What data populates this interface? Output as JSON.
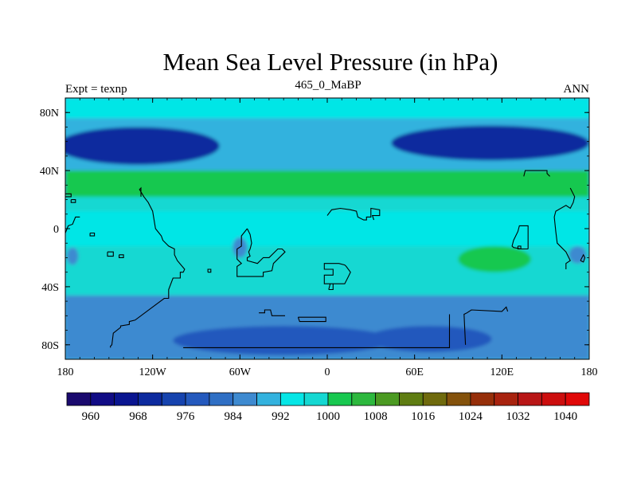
{
  "chart_data": {
    "type": "heatmap",
    "title": "Mean Sea Level Pressure (in hPa)",
    "subtitle_left": "Expt = texnp",
    "subtitle_center": "465_0_MaBP",
    "subtitle_right": "ANN",
    "x_range": [
      -180,
      180
    ],
    "y_range": [
      -90,
      90
    ],
    "x_ticks": [
      {
        "value": -180,
        "label": "180"
      },
      {
        "value": -120,
        "label": "120W"
      },
      {
        "value": -60,
        "label": "60W"
      },
      {
        "value": 0,
        "label": "0"
      },
      {
        "value": 60,
        "label": "60E"
      },
      {
        "value": 120,
        "label": "120E"
      },
      {
        "value": 180,
        "label": "180"
      }
    ],
    "y_ticks": [
      {
        "value": 80,
        "label": "80N"
      },
      {
        "value": 40,
        "label": "40N"
      },
      {
        "value": 0,
        "label": "0"
      },
      {
        "value": -40,
        "label": "40S"
      },
      {
        "value": -80,
        "label": "80S"
      }
    ],
    "colorbar": {
      "min": 956,
      "max": 1044,
      "step": 4,
      "colors": [
        "#1a0a6e",
        "#110c85",
        "#0a1590",
        "#0d2a9e",
        "#1643ae",
        "#2459bd",
        "#2f6fc4",
        "#3e8ad0",
        "#33b2de",
        "#06e6e6",
        "#15d8d2",
        "#18c850",
        "#2db83e",
        "#4b9a22",
        "#5f7d12",
        "#6f6a0d",
        "#84520c",
        "#962f0a",
        "#a8230f",
        "#b81616",
        "#cc0e0e",
        "#e00808"
      ],
      "labels": [
        "960",
        "968",
        "976",
        "984",
        "992",
        "1000",
        "1008",
        "1016",
        "1024",
        "1032",
        "1040"
      ],
      "label_values": [
        960,
        968,
        976,
        984,
        992,
        1000,
        1008,
        1016,
        1024,
        1032,
        1040
      ]
    },
    "base_level": 988,
    "pressure_regions": [
      {
        "value": 986,
        "lon": [
          -180,
          180
        ],
        "lat": [
          -90,
          -46
        ]
      },
      {
        "value": 998,
        "lon": [
          -180,
          180
        ],
        "lat": [
          -46,
          30
        ]
      },
      {
        "value": 1003,
        "lon": [
          -180,
          180
        ],
        "lat": [
          22,
          42
        ]
      },
      {
        "value": 990,
        "lon": [
          -180,
          180
        ],
        "lat": [
          40,
          74
        ]
      },
      {
        "value": 993,
        "lon": [
          -180,
          180
        ],
        "lat": [
          76,
          90
        ]
      },
      {
        "value": 993,
        "lon": [
          -180,
          180
        ],
        "lat": [
          -12,
          12
        ]
      },
      {
        "value": 968,
        "center": [
          -130,
          57
        ],
        "radius": [
          56,
          13
        ]
      },
      {
        "value": 968,
        "center": [
          112,
          59
        ],
        "radius": [
          68,
          12
        ]
      },
      {
        "value": 1003,
        "center": [
          115,
          -21
        ],
        "radius": [
          25,
          9
        ]
      },
      {
        "value": 976,
        "center": [
          -30,
          -77
        ],
        "radius": [
          76,
          10
        ]
      },
      {
        "value": 976,
        "center": [
          70,
          -76
        ],
        "radius": [
          43,
          9
        ]
      },
      {
        "value": 984,
        "center": [
          -60,
          -13
        ],
        "radius": [
          5,
          7
        ]
      },
      {
        "value": 984,
        "center": [
          -175,
          -19
        ],
        "radius": [
          4,
          6
        ]
      },
      {
        "value": 984,
        "center": [
          172,
          -18
        ],
        "radius": [
          6,
          6
        ]
      }
    ],
    "land_outlines": [
      [
        [
          -149,
          -82
        ],
        [
          -149,
          -81
        ],
        [
          -148,
          -80
        ],
        [
          -147,
          -72
        ],
        [
          -142,
          -68
        ],
        [
          -142,
          -67
        ],
        [
          -136,
          -66
        ],
        [
          -136,
          -64
        ],
        [
          -132,
          -63
        ],
        [
          -112,
          -48
        ],
        [
          -109,
          -48
        ],
        [
          -109,
          -42
        ],
        [
          -106,
          -34
        ],
        [
          -101,
          -34
        ],
        [
          -101,
          -30
        ],
        [
          -99,
          -30
        ],
        [
          -98,
          -28
        ],
        [
          -103,
          -22
        ],
        [
          -105,
          -18
        ],
        [
          -105,
          -14
        ],
        [
          -109,
          -12
        ],
        [
          -113,
          -8
        ],
        [
          -114,
          -5
        ],
        [
          -118,
          0
        ],
        [
          -120,
          12
        ],
        [
          -123,
          18
        ],
        [
          -126,
          22
        ],
        [
          -129,
          27
        ],
        [
          -128,
          28
        ],
        [
          -128,
          22
        ]
      ],
      [
        [
          -55,
          0
        ],
        [
          -53,
          -4
        ],
        [
          -52,
          -10
        ],
        [
          -53,
          -14
        ],
        [
          -54,
          -16
        ],
        [
          -53,
          -19
        ],
        [
          -55,
          -20
        ],
        [
          -55,
          -22
        ],
        [
          -48,
          -24
        ],
        [
          -44,
          -20
        ],
        [
          -40,
          -20
        ],
        [
          -34,
          -14
        ],
        [
          -31,
          -14
        ],
        [
          -29,
          -16
        ],
        [
          -37,
          -24
        ],
        [
          -38,
          -29
        ],
        [
          -44,
          -30
        ],
        [
          -44,
          -33
        ],
        [
          -62,
          -33
        ],
        [
          -62,
          -26
        ],
        [
          -59,
          -24
        ],
        [
          -62,
          -21
        ],
        [
          -62,
          -14
        ],
        [
          -59,
          -12
        ],
        [
          -59,
          -5
        ],
        [
          -55,
          0
        ]
      ],
      [
        [
          1,
          -42
        ],
        [
          2,
          -38
        ],
        [
          12,
          -38
        ],
        [
          14,
          -34
        ],
        [
          16,
          -30
        ],
        [
          13,
          -26
        ],
        [
          12,
          -25
        ],
        [
          8,
          -24
        ],
        [
          -2,
          -24
        ],
        [
          -2,
          -28
        ],
        [
          4,
          -28
        ],
        [
          4,
          -32
        ],
        [
          -2,
          -32
        ],
        [
          -2,
          -38
        ],
        [
          4,
          -38
        ],
        [
          4,
          -42
        ],
        [
          1,
          -42
        ]
      ],
      [
        [
          0,
          9
        ],
        [
          3,
          13
        ],
        [
          9,
          14
        ],
        [
          16,
          13
        ],
        [
          20,
          12
        ],
        [
          21,
          8
        ],
        [
          25,
          6
        ],
        [
          27,
          6
        ],
        [
          27,
          8
        ],
        [
          30,
          8
        ],
        [
          30,
          14
        ],
        [
          36,
          13
        ],
        [
          36,
          9
        ],
        [
          31,
          9
        ],
        [
          32,
          6
        ]
      ],
      [
        [
          95,
          -80
        ],
        [
          94,
          -59
        ],
        [
          96,
          -58
        ],
        [
          99,
          -56
        ],
        [
          120,
          -57
        ],
        [
          123,
          -54
        ],
        [
          124,
          -57
        ]
      ],
      [
        [
          -99,
          -82
        ],
        [
          -28,
          -82
        ],
        [
          66,
          -82
        ],
        [
          84,
          -82
        ],
        [
          84,
          -59
        ]
      ],
      [
        [
          -47,
          -58
        ],
        [
          -43,
          -58
        ],
        [
          -43,
          -56
        ],
        [
          -39,
          -56
        ],
        [
          -38,
          -60
        ],
        [
          -29,
          -60
        ]
      ],
      [
        [
          -20,
          -61
        ],
        [
          -19,
          -64
        ],
        [
          -1,
          -64
        ],
        [
          -1,
          -61
        ],
        [
          -20,
          -61
        ]
      ],
      [
        [
          138,
          -14
        ],
        [
          138,
          2
        ],
        [
          132,
          2
        ],
        [
          131,
          -2
        ],
        [
          128,
          -8
        ],
        [
          127,
          -12
        ],
        [
          128,
          -13
        ],
        [
          133,
          -14
        ],
        [
          138,
          -14
        ]
      ],
      [
        [
          164,
          -28
        ],
        [
          164,
          -24
        ],
        [
          167,
          -22
        ],
        [
          164,
          -16
        ],
        [
          158,
          -10
        ],
        [
          157,
          -2
        ],
        [
          156,
          8
        ],
        [
          157,
          12
        ],
        [
          164,
          16
        ],
        [
          167,
          14
        ],
        [
          169,
          18
        ],
        [
          170,
          22
        ],
        [
          167,
          28
        ]
      ],
      [
        [
          -180,
          -3
        ],
        [
          -178,
          2
        ],
        [
          -175,
          3
        ],
        [
          -173,
          8
        ],
        [
          -170,
          8
        ]
      ],
      [
        [
          -180,
          24
        ],
        [
          -176,
          24
        ],
        [
          -176,
          22
        ],
        [
          -180,
          22
        ]
      ],
      [
        [
          -176,
          20
        ],
        [
          -173,
          20
        ],
        [
          -173,
          18
        ],
        [
          -176,
          18
        ],
        [
          -176,
          20
        ]
      ],
      [
        [
          -163,
          -3
        ],
        [
          -160,
          -3
        ],
        [
          -160,
          -5
        ],
        [
          -163,
          -5
        ],
        [
          -163,
          -3
        ]
      ],
      [
        [
          -151,
          -16
        ],
        [
          -147,
          -16
        ],
        [
          -147,
          -19
        ],
        [
          -151,
          -19
        ],
        [
          -151,
          -16
        ]
      ],
      [
        [
          -143,
          -18
        ],
        [
          -140,
          -18
        ],
        [
          -140,
          -20
        ],
        [
          -143,
          -20
        ],
        [
          -143,
          -18
        ]
      ],
      [
        [
          -82,
          -30
        ],
        [
          -80,
          -30
        ],
        [
          -80,
          -28
        ],
        [
          -82,
          -28
        ],
        [
          -82,
          -30
        ]
      ],
      [
        [
          131,
          -12
        ],
        [
          133,
          -12
        ],
        [
          133,
          -14
        ],
        [
          131,
          -14
        ],
        [
          131,
          -12
        ]
      ],
      [
        [
          135,
          36
        ],
        [
          136,
          40
        ],
        [
          151,
          40
        ],
        [
          151,
          38
        ],
        [
          153,
          36
        ]
      ],
      [
        [
          174,
          -22
        ],
        [
          176,
          -23
        ],
        [
          177,
          -20
        ],
        [
          176,
          -18
        ],
        [
          174,
          -22
        ]
      ]
    ]
  }
}
